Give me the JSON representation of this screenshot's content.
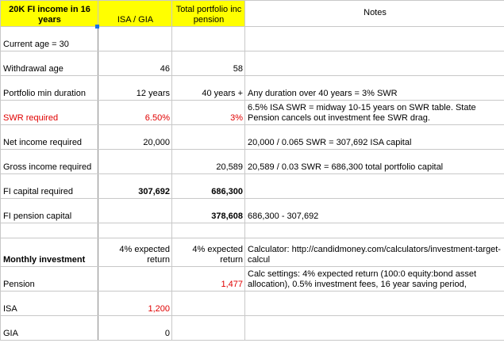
{
  "header": [
    "20K FI income in 16 years",
    "ISA / GIA",
    "Total portfolio inc pension",
    "Notes"
  ],
  "rows": [
    [
      "Current age = 30",
      null,
      null,
      null
    ],
    [
      "Withdrawal age",
      "46",
      "58",
      null
    ],
    [
      "Portfolio min duration",
      "12 years",
      "40 years +",
      "Any duration over 40 years = 3% SWR"
    ],
    [
      "SWR required",
      "6.50%",
      "3%",
      "6.5% ISA SWR = midway 10-15 years on SWR table. State Pension cancels out investment fee SWR drag."
    ],
    [
      "Net income required",
      "20,000",
      null,
      "20,000 / 0.065 SWR = 307,692 ISA capital"
    ],
    [
      "Gross income required",
      null,
      "20,589",
      "20,589 / 0.03 SWR = 686,300 total portfolio capital"
    ],
    [
      "FI capital required",
      "307,692",
      "686,300",
      null
    ],
    [
      "FI pension capital",
      null,
      "378,608",
      "686,300 - 307,692"
    ],
    [
      null,
      null,
      null,
      null
    ],
    [
      "Monthly investment",
      "4% expected return",
      "4% expected return",
      "Calculator: http://candidmoney.com/calculators/investment-target-calcul"
    ],
    [
      "Pension",
      null,
      "1,477",
      "Calc settings: 4% expected return (100:0 equity:bond asset allocation), 0.5% investment fees, 16 year saving period,"
    ],
    [
      "ISA",
      "1,200",
      null,
      null
    ],
    [
      "GIA",
      "0",
      null,
      null
    ]
  ]
}
